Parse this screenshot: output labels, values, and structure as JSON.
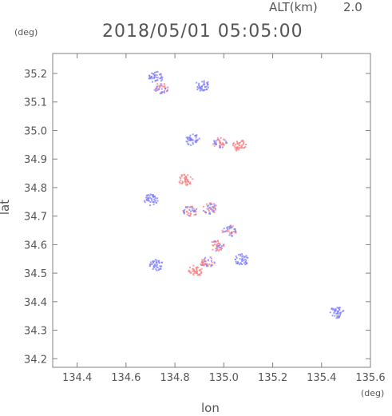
{
  "header": {
    "altitude_label": "ALT(km)",
    "altitude_value": "2.0",
    "datetime": "2018/05/01 05:05:00",
    "y_unit": "(deg)",
    "x_unit": "(deg)"
  },
  "colors": {
    "axis": "#808080",
    "positive": "#ff7b7b",
    "negative": "#7b7bff",
    "text": "#555555"
  },
  "chart_data": {
    "type": "heatmap",
    "title": "2018/05/01 05:05:00",
    "subtitle": "ALT(km) 2.0",
    "xlabel": "lon",
    "ylabel": "lat",
    "x_unit": "(deg)",
    "y_unit": "(deg)",
    "xlim": [
      134.3,
      135.6
    ],
    "ylim": [
      34.17,
      35.27
    ],
    "xticks": [
      134.4,
      134.6,
      134.8,
      135.0,
      135.2,
      135.4,
      135.6
    ],
    "xtick_labels": [
      "134.4",
      "134.6",
      "134.8",
      "135.0",
      "135.2",
      "135.4",
      "135.6"
    ],
    "yticks": [
      34.2,
      34.3,
      34.4,
      34.5,
      34.6,
      34.7,
      34.8,
      34.9,
      35.0,
      35.1,
      35.2
    ],
    "ytick_labels": [
      "34.2",
      "34.3",
      "34.4",
      "34.5",
      "34.6",
      "34.7",
      "34.8",
      "34.9",
      "35.0",
      "35.1",
      "35.2"
    ],
    "grid": false,
    "legend": "none",
    "clusters": [
      {
        "lon": 134.74,
        "lat": 35.15,
        "sign": "mixed"
      },
      {
        "lon": 134.72,
        "lat": 35.19,
        "sign": "negative"
      },
      {
        "lon": 134.91,
        "lat": 35.16,
        "sign": "negative"
      },
      {
        "lon": 134.87,
        "lat": 34.97,
        "sign": "negative"
      },
      {
        "lon": 134.98,
        "lat": 34.96,
        "sign": "mixed"
      },
      {
        "lon": 135.06,
        "lat": 34.95,
        "sign": "positive"
      },
      {
        "lon": 134.84,
        "lat": 34.83,
        "sign": "positive"
      },
      {
        "lon": 134.7,
        "lat": 34.76,
        "sign": "negative"
      },
      {
        "lon": 134.86,
        "lat": 34.72,
        "sign": "mixed"
      },
      {
        "lon": 134.94,
        "lat": 34.73,
        "sign": "mixed"
      },
      {
        "lon": 135.02,
        "lat": 34.65,
        "sign": "mixed"
      },
      {
        "lon": 134.97,
        "lat": 34.6,
        "sign": "mixed"
      },
      {
        "lon": 134.93,
        "lat": 34.54,
        "sign": "mixed"
      },
      {
        "lon": 134.88,
        "lat": 34.51,
        "sign": "positive"
      },
      {
        "lon": 134.72,
        "lat": 34.53,
        "sign": "negative"
      },
      {
        "lon": 135.07,
        "lat": 34.55,
        "sign": "negative"
      },
      {
        "lon": 135.46,
        "lat": 34.365,
        "sign": "negative"
      }
    ]
  }
}
